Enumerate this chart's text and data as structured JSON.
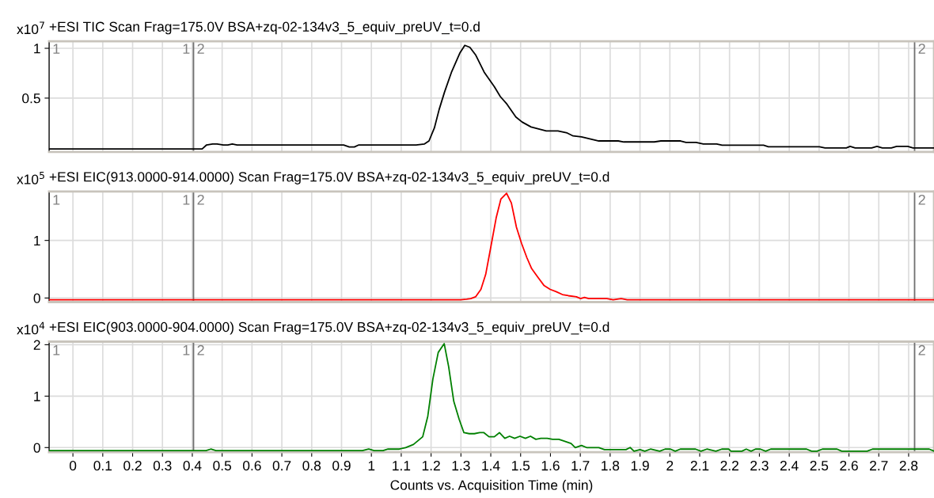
{
  "chart_data": [
    {
      "type": "line",
      "title": "+ESI TIC Scan Frag=175.0V BSA+zq-02-134v3_5_equiv_preUV_t=0.d",
      "ylabel": "x10$^{7}$",
      "series": [
        {
          "color": "#000000",
          "x": [
            -0.08,
            0.433,
            0.448,
            0.468,
            0.483,
            0.504,
            0.519,
            0.534,
            0.55,
            0.907,
            0.926,
            0.943,
            0.958,
            1.15,
            1.178,
            1.193,
            1.211,
            1.227,
            1.245,
            1.269,
            1.296,
            1.313,
            1.33,
            1.349,
            1.378,
            1.412,
            1.432,
            1.454,
            1.484,
            1.505,
            1.535,
            1.586,
            1.625,
            1.656,
            1.676,
            1.704,
            1.762,
            1.827,
            1.846,
            1.948,
            1.97,
            2.036,
            2.054,
            2.088,
            2.112,
            2.157,
            2.175,
            2.314,
            2.33,
            2.501,
            2.52,
            2.591,
            2.604,
            2.621,
            2.676,
            2.694,
            2.712,
            2.742,
            2.76,
            2.797,
            2.815,
            2.885
          ],
          "values": [
            -0.01,
            -0.01,
            0.03,
            0.04,
            0.04,
            0.03,
            0.03,
            0.04,
            0.03,
            0.03,
            0.01,
            0.01,
            0.03,
            0.03,
            0.04,
            0.07,
            0.2,
            0.385,
            0.56,
            0.765,
            0.95,
            1.03,
            1.01,
            0.935,
            0.76,
            0.615,
            0.515,
            0.44,
            0.31,
            0.26,
            0.21,
            0.17,
            0.17,
            0.15,
            0.12,
            0.11,
            0.07,
            0.07,
            0.06,
            0.06,
            0.07,
            0.07,
            0.055,
            0.055,
            0.04,
            0.04,
            0.027,
            0.027,
            0.012,
            0.012,
            0.0,
            0.0,
            0.015,
            0.0,
            0.0,
            0.015,
            0.0,
            0.0,
            0.015,
            0.015,
            0.0,
            0.0
          ]
        }
      ],
      "xlim": [
        -0.08,
        2.885
      ],
      "xticks": [
        0,
        0.1,
        0.2,
        0.3,
        0.4,
        0.5,
        0.6,
        0.7,
        0.8,
        0.9,
        1,
        1.1,
        1.2,
        1.3,
        1.4,
        1.5,
        1.6,
        1.7,
        1.8,
        1.9,
        2,
        2.1,
        2.2,
        2.3,
        2.4,
        2.5,
        2.6,
        2.7,
        2.8
      ],
      "ylim": [
        -0.04,
        1.07
      ],
      "yticks": [
        0.5,
        1
      ],
      "grid": true,
      "tick_labels": "y",
      "ref_lines": [
        {
          "axis": "x",
          "value": -0.08,
          "color": "#707070"
        },
        {
          "axis": "x",
          "value": 0.404,
          "color": "#707070"
        },
        {
          "axis": "x",
          "value": 2.82,
          "color": "#707070"
        }
      ],
      "annotations": [
        {
          "text": "1",
          "x": -0.08,
          "y": 1.05
        },
        {
          "text": "1",
          "x": 0.404,
          "y": 1.05
        },
        {
          "text": "2",
          "x": 0.404,
          "y": 1.05
        },
        {
          "text": "2",
          "x": 2.82,
          "y": 1.05
        }
      ]
    },
    {
      "type": "line",
      "title": "+ESI EIC(913.0000-914.0000) Scan Frag=175.0V BSA+zq-02-134v3_5_equiv_preUV_t=0.d",
      "ylabel": "x10$^{5}$",
      "series": [
        {
          "color": "#ff0000",
          "x": [
            -0.08,
            1.299,
            1.319,
            1.333,
            1.349,
            1.367,
            1.383,
            1.401,
            1.418,
            1.434,
            1.453,
            1.469,
            1.486,
            1.503,
            1.521,
            1.537,
            1.558,
            1.578,
            1.599,
            1.619,
            1.64,
            1.66,
            1.687,
            1.701,
            1.714,
            1.728,
            1.789,
            1.81,
            1.837,
            1.857,
            2.885
          ],
          "values": [
            -0.03,
            -0.03,
            -0.02,
            -0.01,
            0.02,
            0.15,
            0.41,
            0.91,
            1.39,
            1.72,
            1.82,
            1.65,
            1.23,
            0.95,
            0.7,
            0.51,
            0.36,
            0.22,
            0.15,
            0.11,
            0.06,
            0.04,
            0.02,
            -0.01,
            0.01,
            -0.01,
            -0.01,
            -0.03,
            -0.01,
            -0.03,
            -0.03
          ]
        }
      ],
      "xlim": [
        -0.08,
        2.885
      ],
      "xticks": [
        0,
        0.1,
        0.2,
        0.3,
        0.4,
        0.5,
        0.6,
        0.7,
        0.8,
        0.9,
        1,
        1.1,
        1.2,
        1.3,
        1.4,
        1.5,
        1.6,
        1.7,
        1.8,
        1.9,
        2,
        2.1,
        2.2,
        2.3,
        2.4,
        2.5,
        2.6,
        2.7,
        2.8
      ],
      "ylim": [
        -0.07,
        1.85
      ],
      "yticks": [
        0,
        1
      ],
      "grid": true,
      "tick_labels": "y",
      "ref_lines": [
        {
          "axis": "x",
          "value": -0.08,
          "color": "#707070"
        },
        {
          "axis": "x",
          "value": 0.404,
          "color": "#707070"
        },
        {
          "axis": "x",
          "value": 2.82,
          "color": "#707070"
        }
      ],
      "annotations": [
        {
          "text": "1",
          "x": -0.08,
          "y": 1.8
        },
        {
          "text": "1",
          "x": 0.404,
          "y": 1.8
        },
        {
          "text": "2",
          "x": 0.404,
          "y": 1.8
        },
        {
          "text": "2",
          "x": 2.82,
          "y": 1.8
        }
      ]
    },
    {
      "type": "line",
      "title": "+ESI EIC(903.0000-904.0000) Scan Frag=175.0V BSA+zq-02-134v3_5_equiv_preUV_t=0.d",
      "ylabel": "x10$^{4}$",
      "xlabel": "Counts vs. Acquisition Time (min)",
      "series": [
        {
          "color": "#008000",
          "x": [
            -0.08,
            0.446,
            0.462,
            0.479,
            0.97,
            0.991,
            1.009,
            1.039,
            1.056,
            1.094,
            1.115,
            1.141,
            1.172,
            1.189,
            1.206,
            1.224,
            1.244,
            1.259,
            1.276,
            1.294,
            1.31,
            1.328,
            1.345,
            1.363,
            1.377,
            1.394,
            1.412,
            1.429,
            1.447,
            1.463,
            1.48,
            1.498,
            1.516,
            1.533,
            1.551,
            1.568,
            1.589,
            1.607,
            1.628,
            1.644,
            1.669,
            1.683,
            1.704,
            1.721,
            1.762,
            1.781,
            1.853,
            1.867,
            1.88,
            1.9,
            1.916,
            1.935,
            1.966,
            1.984,
            2.002,
            2.018,
            2.035,
            2.086,
            2.104,
            2.124,
            2.154,
            2.174,
            2.197,
            2.205,
            2.241,
            2.256,
            2.272,
            2.287,
            2.303,
            2.321,
            2.338,
            2.458,
            2.475,
            2.493,
            2.511,
            2.56,
            2.576,
            2.661,
            2.679,
            2.869,
            2.885
          ],
          "values": [
            -0.06,
            -0.06,
            -0.03,
            -0.06,
            -0.06,
            -0.03,
            -0.06,
            -0.06,
            -0.03,
            -0.03,
            0.0,
            0.06,
            0.21,
            0.61,
            1.33,
            1.85,
            2.02,
            1.57,
            0.9,
            0.55,
            0.29,
            0.27,
            0.27,
            0.29,
            0.29,
            0.21,
            0.21,
            0.29,
            0.18,
            0.22,
            0.18,
            0.22,
            0.18,
            0.22,
            0.16,
            0.18,
            0.18,
            0.16,
            0.16,
            0.13,
            0.08,
            0.0,
            0.04,
            0.0,
            0.0,
            -0.04,
            -0.04,
            0.0,
            -0.07,
            -0.04,
            -0.07,
            -0.03,
            -0.07,
            -0.03,
            -0.03,
            -0.07,
            -0.03,
            -0.03,
            -0.07,
            -0.03,
            -0.07,
            -0.03,
            -0.03,
            -0.07,
            -0.07,
            -0.03,
            -0.07,
            -0.03,
            -0.03,
            -0.07,
            -0.03,
            -0.03,
            -0.07,
            -0.07,
            -0.03,
            -0.03,
            -0.07,
            -0.07,
            -0.03,
            -0.03,
            -0.07
          ]
        }
      ],
      "xlim": [
        -0.08,
        2.885
      ],
      "xticks": [
        0,
        0.1,
        0.2,
        0.3,
        0.4,
        0.5,
        0.6,
        0.7,
        0.8,
        0.9,
        1,
        1.1,
        1.2,
        1.3,
        1.4,
        1.5,
        1.6,
        1.7,
        1.8,
        1.9,
        2,
        2.1,
        2.2,
        2.3,
        2.4,
        2.5,
        2.6,
        2.7,
        2.8
      ],
      "ylim": [
        -0.09,
        2.06
      ],
      "yticks": [
        0,
        1,
        2
      ],
      "grid": true,
      "ref_lines": [
        {
          "axis": "x",
          "value": -0.08,
          "color": "#707070"
        },
        {
          "axis": "x",
          "value": 0.404,
          "color": "#707070"
        },
        {
          "axis": "x",
          "value": 2.82,
          "color": "#707070"
        }
      ],
      "annotations": [
        {
          "text": "1",
          "x": -0.08,
          "y": 2.0
        },
        {
          "text": "1",
          "x": 0.404,
          "y": 2.0
        },
        {
          "text": "2",
          "x": 0.404,
          "y": 2.0
        },
        {
          "text": "2",
          "x": 2.82,
          "y": 2.0
        }
      ]
    }
  ]
}
